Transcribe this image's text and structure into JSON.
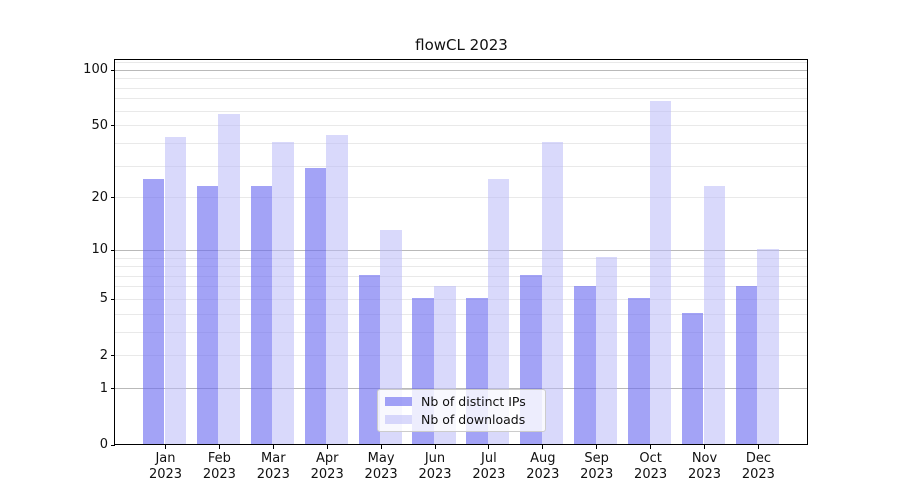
{
  "chart_data": {
    "type": "bar",
    "title": "flowCL 2023",
    "x_month_labels": [
      "Jan",
      "Feb",
      "Mar",
      "Apr",
      "May",
      "Jun",
      "Jul",
      "Aug",
      "Sep",
      "Oct",
      "Nov",
      "Dec"
    ],
    "x_year_label": "2023",
    "series": [
      {
        "name": "Nb of distinct IPs",
        "color": "rgba(106,106,240,0.62)",
        "values": [
          25,
          23,
          23,
          29,
          7,
          5,
          5,
          7,
          6,
          5,
          4,
          6
        ]
      },
      {
        "name": "Nb of downloads",
        "color": "rgba(186,186,248,0.55)",
        "values": [
          43,
          57,
          40,
          44,
          13,
          6,
          25,
          40,
          9,
          67,
          23,
          10
        ]
      }
    ],
    "y_scale": "log10(1+x)",
    "y_tick_labels": [
      "100",
      "50",
      "20",
      "10",
      "5",
      "2",
      "1",
      "0"
    ],
    "y_tick_values": [
      100,
      50,
      20,
      10,
      5,
      2,
      1,
      0
    ],
    "y_major_grid_values": [
      1,
      10,
      100
    ],
    "y_minor_grid_values": [
      2,
      3,
      4,
      5,
      6,
      7,
      8,
      9,
      20,
      30,
      40,
      50,
      60,
      70,
      80,
      90,
      110
    ],
    "ylim": [
      0,
      114
    ],
    "grid": "on (major + minor)",
    "legend_position": "lower center"
  },
  "colors": {
    "background": "#ffffff",
    "axis": "#000000",
    "grid_major": "#b9b9b9",
    "grid_minor": "#e9e9e9",
    "legend_border": "#cccccc",
    "bar_distinct_ips_on_white": "#a4a4f4",
    "bar_downloads_on_white": "#d9d9fa"
  }
}
